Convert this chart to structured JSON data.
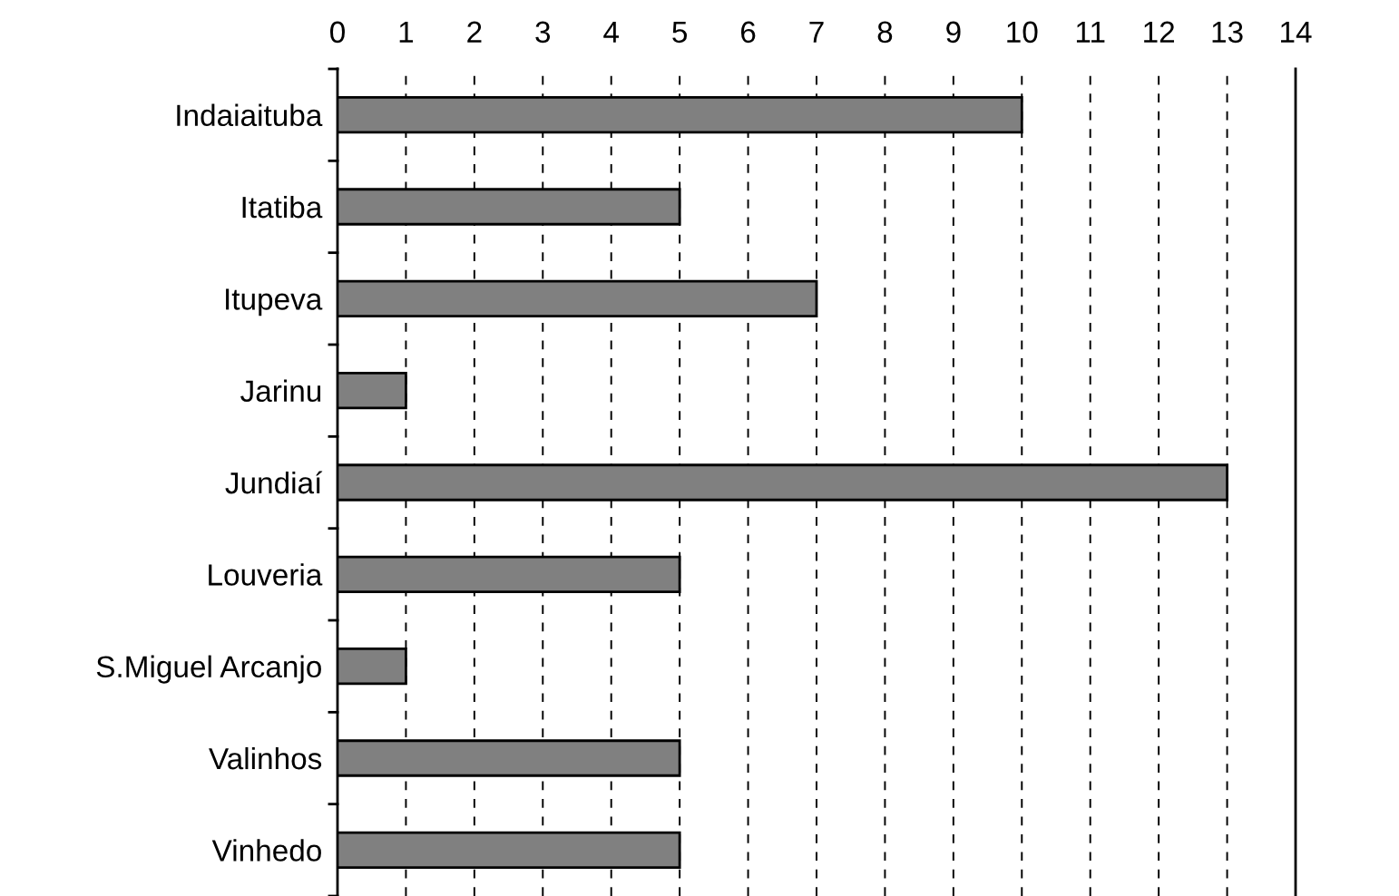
{
  "chart_data": {
    "type": "bar",
    "orientation": "horizontal",
    "categories": [
      "Indaiaituba",
      "Itatiba",
      "Itupeva",
      "Jarinu",
      "Jundiaí",
      "Louveria",
      "S.Miguel Arcanjo",
      "Valinhos",
      "Vinhedo"
    ],
    "values": [
      10,
      5,
      7,
      1,
      13,
      5,
      1,
      5,
      5
    ],
    "color": "#808080",
    "xlim": [
      0,
      14
    ],
    "xticks": [
      0,
      1,
      2,
      3,
      4,
      5,
      6,
      7,
      8,
      9,
      10,
      11,
      12,
      13,
      14
    ],
    "grid": "x"
  }
}
